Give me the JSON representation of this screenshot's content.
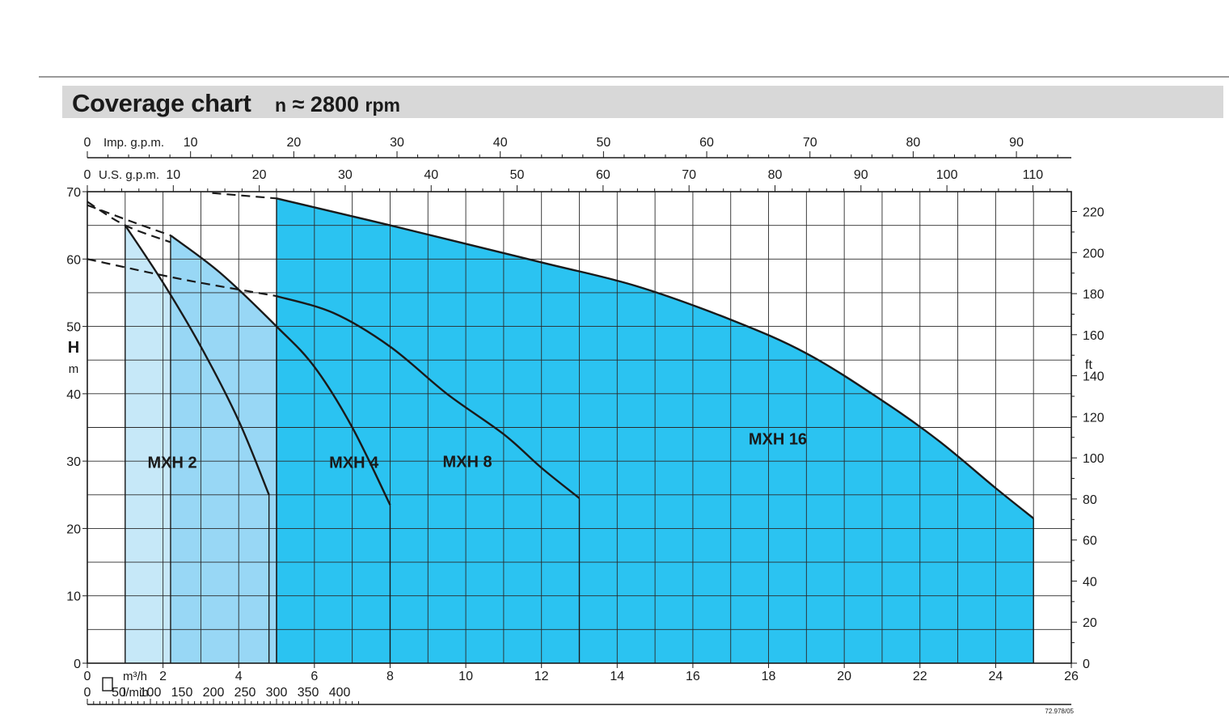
{
  "header": {
    "title": "Coverage chart",
    "subtitle_n": "n",
    "subtitle_approx": "≈",
    "subtitle_value": "2800",
    "subtitle_unit": "rpm"
  },
  "chart_data": {
    "type": "area",
    "title": "Coverage chart",
    "subtitle": "n ≈ 2800 rpm",
    "x_primary": {
      "unit": "m³/h",
      "range": [
        0,
        26
      ],
      "ticks": [
        0,
        2,
        4,
        6,
        8,
        10,
        12,
        14,
        16,
        18,
        20,
        22,
        24,
        26
      ]
    },
    "x_lmin": {
      "unit": "l/min",
      "ticks": [
        0,
        50,
        100,
        150,
        200,
        250,
        300,
        350,
        400
      ]
    },
    "x_imp": {
      "unit": "Imp. g.p.m.",
      "ticks": [
        0,
        10,
        20,
        30,
        40,
        50,
        60,
        70,
        80,
        90
      ]
    },
    "x_us": {
      "unit": "U.S. g.p.m.",
      "ticks": [
        0,
        10,
        20,
        30,
        40,
        50,
        60,
        70,
        80,
        90,
        100,
        110
      ]
    },
    "y_left": {
      "label": "H",
      "unit": "m",
      "range": [
        0,
        70
      ],
      "ticks": [
        0,
        10,
        20,
        30,
        40,
        50,
        60,
        70
      ]
    },
    "y_right": {
      "unit": "ft",
      "ticks": [
        0,
        20,
        40,
        60,
        80,
        100,
        120,
        140,
        160,
        180,
        200,
        220
      ]
    },
    "grid": true,
    "series": [
      {
        "name": "MXH 2",
        "color": "#c6e8f8",
        "points": [
          [
            1,
            65
          ],
          [
            2,
            56.5
          ],
          [
            3,
            47
          ],
          [
            4,
            36
          ],
          [
            4.8,
            25
          ]
        ]
      },
      {
        "name": "MXH 4",
        "color": "#98d7f5",
        "points": [
          [
            2.2,
            63.5
          ],
          [
            3.5,
            58
          ],
          [
            5,
            50
          ],
          [
            6,
            44
          ],
          [
            7,
            35
          ],
          [
            8,
            23.5
          ]
        ]
      },
      {
        "name": "MXH 8",
        "color": "#68c9f3",
        "points": [
          [
            5,
            54.5
          ],
          [
            6.5,
            52
          ],
          [
            8,
            47
          ],
          [
            9.5,
            40
          ],
          [
            11,
            34
          ],
          [
            12,
            29
          ],
          [
            13,
            24.5
          ]
        ]
      },
      {
        "name": "MXH 16",
        "color": "#2bc3f1",
        "points": [
          [
            5,
            69
          ],
          [
            8,
            65
          ],
          [
            12,
            59.5
          ],
          [
            14.5,
            56
          ],
          [
            17,
            51
          ],
          [
            19,
            46
          ],
          [
            21,
            39
          ],
          [
            22.5,
            33
          ],
          [
            24,
            26
          ],
          [
            25,
            21.5
          ]
        ]
      }
    ]
  },
  "footer": {
    "code": "72.978/05"
  }
}
